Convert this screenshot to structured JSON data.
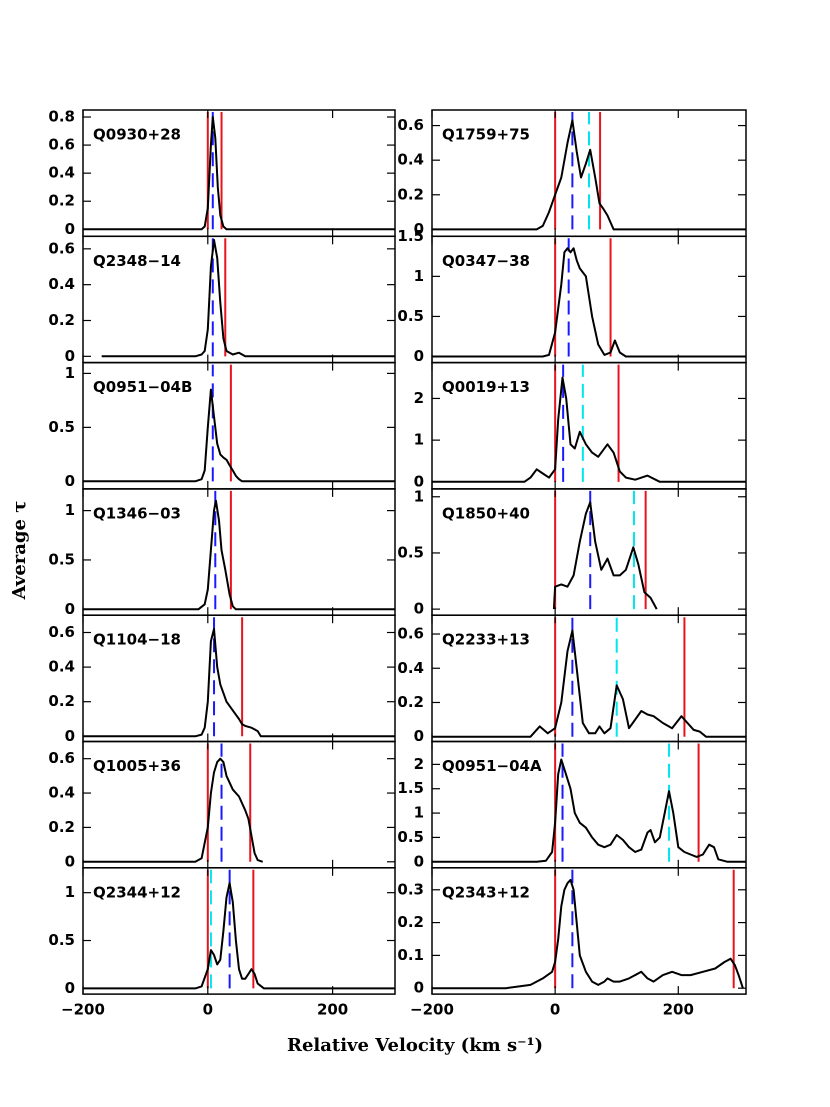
{
  "ylabel": "Average τ",
  "xlabel": "Relative Velocity (km s⁻¹)",
  "chart_data": [
    {
      "type": "line",
      "title": "Q0930+28",
      "xlim": [
        -200,
        300
      ],
      "ylim": [
        -0.05,
        0.85
      ],
      "xticks": [
        {
          "value": -200,
          "label": "−200"
        },
        0,
        200
      ],
      "yticks": [
        0,
        0.2,
        0.4,
        0.6,
        0.8
      ],
      "x": [
        -200,
        -10,
        -5,
        0,
        5,
        8,
        12,
        16,
        20,
        25,
        30,
        300
      ],
      "values": [
        0,
        0,
        0.02,
        0.15,
        0.6,
        0.8,
        0.65,
        0.3,
        0.1,
        0.02,
        0,
        0
      ],
      "vlines": [
        {
          "color": "#e8141c",
          "dashed": false,
          "x": [
            0,
            22
          ]
        },
        {
          "color": "#1a1aff",
          "dashed": true,
          "x": [
            8
          ]
        }
      ]
    },
    {
      "type": "line",
      "title": "Q2348−14",
      "xlim": [
        -200,
        300
      ],
      "ylim": [
        -0.035,
        0.67
      ],
      "xticks": [
        {
          "value": -200,
          "label": "−200"
        },
        0,
        200
      ],
      "yticks": [
        0,
        0.2,
        0.4,
        0.6
      ],
      "x": [
        -170,
        -20,
        -10,
        -5,
        0,
        5,
        10,
        15,
        20,
        25,
        30,
        40,
        50,
        55,
        60,
        300
      ],
      "values": [
        0,
        0,
        0.01,
        0.03,
        0.15,
        0.5,
        0.65,
        0.55,
        0.3,
        0.1,
        0.03,
        0.01,
        0.02,
        0.01,
        0,
        0
      ],
      "vlines": [
        {
          "color": "#e8141c",
          "dashed": false,
          "x": [
            28
          ]
        },
        {
          "color": "#1a1aff",
          "dashed": true,
          "x": [
            8
          ]
        }
      ]
    },
    {
      "type": "line",
      "title": "Q0951−04B",
      "xlim": [
        -200,
        300
      ],
      "ylim": [
        -0.07,
        1.1
      ],
      "xticks": [
        {
          "value": -200,
          "label": "−200"
        },
        0,
        200
      ],
      "yticks": [
        0,
        0.5,
        1
      ],
      "x": [
        -200,
        -20,
        -10,
        -5,
        0,
        5,
        10,
        15,
        20,
        25,
        30,
        35,
        40,
        45,
        50,
        55,
        300
      ],
      "values": [
        0,
        0,
        0.02,
        0.1,
        0.5,
        0.85,
        0.6,
        0.35,
        0.25,
        0.22,
        0.2,
        0.15,
        0.1,
        0.05,
        0.02,
        0,
        0
      ],
      "vlines": [
        {
          "color": "#e8141c",
          "dashed": false,
          "x": [
            37
          ]
        },
        {
          "color": "#1a1aff",
          "dashed": true,
          "x": [
            8
          ]
        }
      ]
    },
    {
      "type": "line",
      "title": "Q1346−03",
      "xlim": [
        -200,
        300
      ],
      "ylim": [
        -0.06,
        1.22
      ],
      "xticks": [
        {
          "value": -200,
          "label": "−200"
        },
        0,
        200
      ],
      "yticks": [
        0,
        0.5,
        1
      ],
      "x": [
        -200,
        -15,
        -5,
        0,
        5,
        10,
        13,
        18,
        22,
        28,
        35,
        40,
        45,
        300
      ],
      "values": [
        0,
        0,
        0.05,
        0.2,
        0.6,
        1.0,
        1.1,
        0.9,
        0.6,
        0.4,
        0.15,
        0.03,
        0,
        0
      ],
      "vlines": [
        {
          "color": "#e8141c",
          "dashed": false,
          "x": [
            37
          ]
        },
        {
          "color": "#1a1aff",
          "dashed": true,
          "x": [
            12
          ]
        }
      ]
    },
    {
      "type": "line",
      "title": "Q1104−18",
      "xlim": [
        -200,
        300
      ],
      "ylim": [
        -0.03,
        0.7
      ],
      "xticks": [
        {
          "value": -200,
          "label": "−200"
        },
        0,
        200
      ],
      "yticks": [
        0,
        0.2,
        0.4,
        0.6
      ],
      "x": [
        -200,
        -20,
        -10,
        -5,
        0,
        5,
        10,
        15,
        20,
        25,
        30,
        40,
        50,
        55,
        60,
        70,
        80,
        85,
        300
      ],
      "values": [
        0,
        0,
        0.01,
        0.05,
        0.2,
        0.55,
        0.62,
        0.4,
        0.3,
        0.25,
        0.2,
        0.15,
        0.1,
        0.07,
        0.06,
        0.05,
        0.03,
        0,
        0
      ],
      "vlines": [
        {
          "color": "#e8141c",
          "dashed": false,
          "x": [
            55
          ]
        },
        {
          "color": "#1a1aff",
          "dashed": true,
          "x": [
            10
          ]
        }
      ]
    },
    {
      "type": "line",
      "title": "Q1005+36",
      "xlim": [
        -200,
        300
      ],
      "ylim": [
        -0.035,
        0.7
      ],
      "xticks": [
        {
          "value": -200,
          "label": "−200"
        },
        0,
        200
      ],
      "yticks": [
        0,
        0.2,
        0.4,
        0.6
      ],
      "x": [
        -200,
        -20,
        -10,
        0,
        5,
        10,
        15,
        20,
        25,
        30,
        40,
        50,
        60,
        65,
        70,
        75,
        80,
        88
      ],
      "values": [
        0,
        0,
        0.02,
        0.2,
        0.4,
        0.52,
        0.58,
        0.6,
        0.58,
        0.5,
        0.42,
        0.38,
        0.3,
        0.25,
        0.15,
        0.05,
        0.01,
        0
      ],
      "vlines": [
        {
          "color": "#e8141c",
          "dashed": false,
          "x": [
            0,
            68
          ]
        },
        {
          "color": "#1a1aff",
          "dashed": true,
          "x": [
            22
          ]
        }
      ]
    },
    {
      "type": "line",
      "title": "Q2344+12",
      "xlim": [
        -200,
        300
      ],
      "ylim": [
        -0.06,
        1.26
      ],
      "xticks": [
        {
          "value": -200,
          "label": "−200"
        },
        0,
        200
      ],
      "yticks": [
        0,
        0.5,
        1
      ],
      "x": [
        -200,
        -20,
        -10,
        0,
        5,
        10,
        15,
        20,
        25,
        30,
        35,
        40,
        45,
        50,
        55,
        60,
        65,
        70,
        75,
        80,
        90,
        300
      ],
      "values": [
        0,
        0,
        0.02,
        0.2,
        0.4,
        0.35,
        0.25,
        0.3,
        0.6,
        0.95,
        1.1,
        0.9,
        0.5,
        0.2,
        0.1,
        0.1,
        0.15,
        0.2,
        0.15,
        0.05,
        0,
        0
      ],
      "vlines": [
        {
          "color": "#e8141c",
          "dashed": false,
          "x": [
            0,
            73
          ]
        },
        {
          "color": "#1a1aff",
          "dashed": true,
          "x": [
            35
          ]
        },
        {
          "color": "#00e5ee",
          "dashed": true,
          "x": [
            5
          ]
        }
      ]
    },
    {
      "type": "line",
      "title": "Q1759+75",
      "xlim": [
        -200,
        310
      ],
      "ylim": [
        -0.04,
        0.69
      ],
      "xticks": [
        {
          "value": -200,
          "label": "−200"
        },
        0,
        200
      ],
      "yticks": [
        0,
        0.2,
        0.4,
        0.6
      ],
      "x": [
        -200,
        -30,
        -20,
        -10,
        0,
        10,
        20,
        28,
        35,
        42,
        50,
        57,
        65,
        72,
        78,
        85,
        95,
        310
      ],
      "values": [
        0,
        0,
        0.02,
        0.1,
        0.2,
        0.3,
        0.5,
        0.63,
        0.45,
        0.3,
        0.38,
        0.46,
        0.3,
        0.15,
        0.12,
        0.08,
        0,
        0
      ],
      "vlines": [
        {
          "color": "#e8141c",
          "dashed": false,
          "x": [
            0,
            73
          ]
        },
        {
          "color": "#1a1aff",
          "dashed": true,
          "x": [
            28
          ]
        },
        {
          "color": "#00e5ee",
          "dashed": true,
          "x": [
            55
          ]
        }
      ]
    },
    {
      "type": "line",
      "title": "Q0347−38",
      "xlim": [
        -200,
        310
      ],
      "ylim": [
        -0.076,
        1.5
      ],
      "xticks": [
        {
          "value": -200,
          "label": "−200"
        },
        0,
        200
      ],
      "yticks": [
        0,
        0.5,
        1,
        1.5
      ],
      "x": [
        -200,
        -20,
        -10,
        0,
        10,
        15,
        20,
        25,
        30,
        35,
        40,
        50,
        60,
        70,
        80,
        90,
        97,
        105,
        115,
        310
      ],
      "values": [
        0,
        0,
        0.02,
        0.3,
        0.9,
        1.3,
        1.35,
        1.3,
        1.35,
        1.2,
        1.1,
        1.0,
        0.5,
        0.15,
        0.02,
        0.05,
        0.2,
        0.05,
        0,
        0
      ],
      "vlines": [
        {
          "color": "#e8141c",
          "dashed": false,
          "x": [
            0,
            90
          ]
        },
        {
          "color": "#1a1aff",
          "dashed": true,
          "x": [
            22
          ]
        }
      ]
    },
    {
      "type": "line",
      "title": "Q0019+13",
      "xlim": [
        -200,
        310
      ],
      "ylim": [
        -0.17,
        2.86
      ],
      "xticks": [
        {
          "value": -200,
          "label": "−200"
        },
        0,
        200
      ],
      "yticks": [
        0,
        1,
        2
      ],
      "x": [
        -200,
        -50,
        -40,
        -30,
        -20,
        -10,
        0,
        5,
        12,
        18,
        25,
        32,
        40,
        50,
        60,
        70,
        85,
        95,
        105,
        115,
        130,
        150,
        170,
        310
      ],
      "values": [
        0,
        0,
        0.1,
        0.3,
        0.2,
        0.1,
        0.3,
        1.5,
        2.5,
        2.0,
        0.9,
        0.8,
        1.2,
        0.9,
        0.7,
        0.6,
        0.9,
        0.7,
        0.25,
        0.1,
        0.05,
        0.15,
        0,
        0
      ],
      "vlines": [
        {
          "color": "#e8141c",
          "dashed": false,
          "x": [
            0,
            103
          ]
        },
        {
          "color": "#1a1aff",
          "dashed": true,
          "x": [
            13
          ]
        },
        {
          "color": "#00e5ee",
          "dashed": true,
          "x": [
            45
          ]
        }
      ]
    },
    {
      "type": "line",
      "title": "Q1850+40",
      "xlim": [
        -200,
        310
      ],
      "ylim": [
        -0.054,
        1.07
      ],
      "xticks": [
        {
          "value": -200,
          "label": "−200"
        },
        0,
        200
      ],
      "yticks": [
        0,
        0.5,
        1
      ],
      "x": [
        -2,
        0,
        10,
        20,
        30,
        40,
        50,
        57,
        65,
        75,
        85,
        95,
        105,
        115,
        127,
        135,
        145,
        155,
        165
      ],
      "values": [
        0,
        0.2,
        0.22,
        0.2,
        0.3,
        0.6,
        0.85,
        0.95,
        0.6,
        0.35,
        0.45,
        0.3,
        0.3,
        0.35,
        0.55,
        0.4,
        0.15,
        0.1,
        0
      ],
      "vlines": [
        {
          "color": "#e8141c",
          "dashed": false,
          "x": [
            0,
            147
          ]
        },
        {
          "color": "#1a1aff",
          "dashed": true,
          "x": [
            57
          ]
        },
        {
          "color": "#00e5ee",
          "dashed": true,
          "x": [
            128
          ]
        }
      ]
    },
    {
      "type": "line",
      "title": "Q2233+13",
      "xlim": [
        -200,
        310
      ],
      "ylim": [
        -0.028,
        0.71
      ],
      "xticks": [
        {
          "value": -200,
          "label": "−200"
        },
        0,
        200
      ],
      "yticks": [
        0,
        0.2,
        0.4,
        0.6
      ],
      "x": [
        -200,
        -40,
        -25,
        -12,
        0,
        10,
        20,
        28,
        35,
        45,
        55,
        65,
        72,
        80,
        90,
        100,
        110,
        120,
        130,
        140,
        150,
        160,
        175,
        190,
        205,
        215,
        225,
        235,
        245,
        310
      ],
      "values": [
        0,
        0,
        0.06,
        0.02,
        0.05,
        0.2,
        0.5,
        0.62,
        0.4,
        0.08,
        0.02,
        0.02,
        0.06,
        0.02,
        0.05,
        0.3,
        0.22,
        0.05,
        0.1,
        0.15,
        0.13,
        0.12,
        0.08,
        0.05,
        0.12,
        0.08,
        0.04,
        0.03,
        0,
        0
      ],
      "vlines": [
        {
          "color": "#e8141c",
          "dashed": false,
          "x": [
            0,
            210
          ]
        },
        {
          "color": "#1a1aff",
          "dashed": true,
          "x": [
            28
          ]
        },
        {
          "color": "#00e5ee",
          "dashed": true,
          "x": [
            100
          ]
        }
      ]
    },
    {
      "type": "line",
      "title": "Q0951−04A",
      "xlim": [
        -200,
        310
      ],
      "ylim": [
        -0.124,
        2.47
      ],
      "xticks": [
        {
          "value": -200,
          "label": "−200"
        },
        0,
        200
      ],
      "yticks": [
        0,
        0.5,
        1,
        1.5,
        2
      ],
      "x": [
        -200,
        -30,
        -15,
        -5,
        0,
        5,
        10,
        15,
        25,
        32,
        40,
        50,
        60,
        70,
        80,
        90,
        100,
        110,
        120,
        130,
        140,
        150,
        155,
        162,
        170,
        178,
        185,
        192,
        200,
        210,
        220,
        230,
        240,
        250,
        258,
        265,
        280,
        310
      ],
      "values": [
        0,
        0,
        0.02,
        0.2,
        0.8,
        1.8,
        2.1,
        1.9,
        1.5,
        1.0,
        0.8,
        0.7,
        0.5,
        0.35,
        0.3,
        0.35,
        0.55,
        0.45,
        0.3,
        0.2,
        0.25,
        0.6,
        0.65,
        0.4,
        0.5,
        1.0,
        1.45,
        1.0,
        0.3,
        0.2,
        0.15,
        0.1,
        0.15,
        0.35,
        0.3,
        0.05,
        0,
        0
      ],
      "vlines": [
        {
          "color": "#e8141c",
          "dashed": false,
          "x": [
            0,
            233
          ]
        },
        {
          "color": "#1a1aff",
          "dashed": true,
          "x": [
            12
          ]
        },
        {
          "color": "#00e5ee",
          "dashed": true,
          "x": [
            185
          ]
        }
      ]
    },
    {
      "type": "line",
      "title": "Q2343+12",
      "xlim": [
        -200,
        310
      ],
      "ylim": [
        -0.018,
        0.367
      ],
      "xticks": [
        {
          "value": -200,
          "label": "−200"
        },
        0,
        200
      ],
      "yticks": [
        0,
        0.1,
        0.2,
        0.3
      ],
      "x": [
        -200,
        -80,
        -40,
        -20,
        -5,
        0,
        5,
        10,
        15,
        20,
        25,
        30,
        35,
        40,
        50,
        60,
        70,
        80,
        85,
        95,
        105,
        120,
        140,
        150,
        160,
        175,
        190,
        205,
        220,
        240,
        260,
        275,
        285,
        292,
        298,
        305
      ],
      "values": [
        0,
        0,
        0.01,
        0.03,
        0.05,
        0.08,
        0.15,
        0.25,
        0.3,
        0.32,
        0.33,
        0.3,
        0.2,
        0.1,
        0.05,
        0.02,
        0.01,
        0.02,
        0.03,
        0.02,
        0.02,
        0.03,
        0.05,
        0.03,
        0.02,
        0.04,
        0.05,
        0.04,
        0.04,
        0.05,
        0.06,
        0.08,
        0.09,
        0.07,
        0.04,
        0
      ],
      "vlines": [
        {
          "color": "#e8141c",
          "dashed": false,
          "x": [
            0,
            290
          ]
        },
        {
          "color": "#1a1aff",
          "dashed": true,
          "x": [
            28
          ]
        }
      ]
    }
  ]
}
